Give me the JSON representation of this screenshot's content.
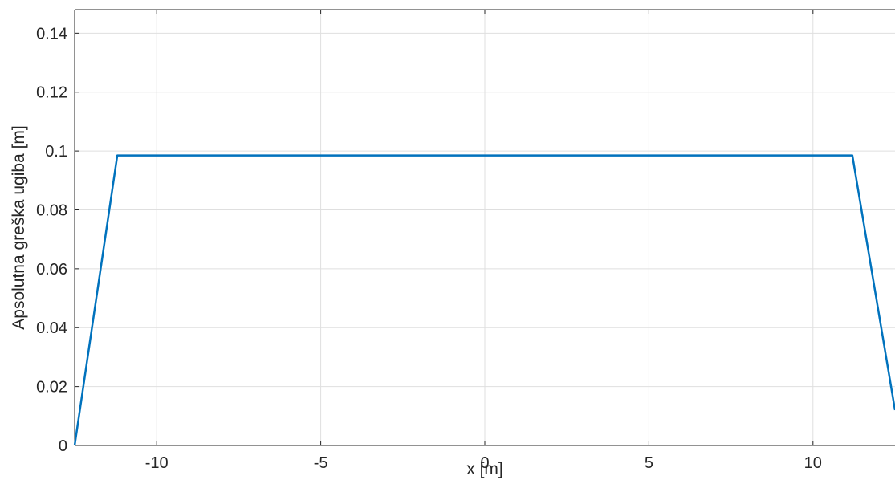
{
  "chart_data": {
    "type": "line",
    "title": "",
    "xlabel": "x [m]",
    "ylabel": "Apsolutna greška ugiba [m]",
    "xlim": [
      -12.5,
      12.5
    ],
    "ylim": [
      0,
      0.148
    ],
    "xticks": [
      -10,
      -5,
      0,
      5,
      10
    ],
    "xtick_labels": [
      "-10",
      "-5",
      "0",
      "5",
      "10"
    ],
    "yticks": [
      0,
      0.02,
      0.04,
      0.06,
      0.08,
      0.1,
      0.12,
      0.14
    ],
    "ytick_labels": [
      "0",
      "0.02",
      "0.04",
      "0.06",
      "0.08",
      "0.1",
      "0.12",
      "0.14"
    ],
    "grid": true,
    "series": [
      {
        "color": "#0072bd",
        "x": [
          -12.5,
          -11.2,
          11.2,
          12.5
        ],
        "y": [
          0,
          0.0985,
          0.0985,
          0.012
        ]
      }
    ]
  }
}
